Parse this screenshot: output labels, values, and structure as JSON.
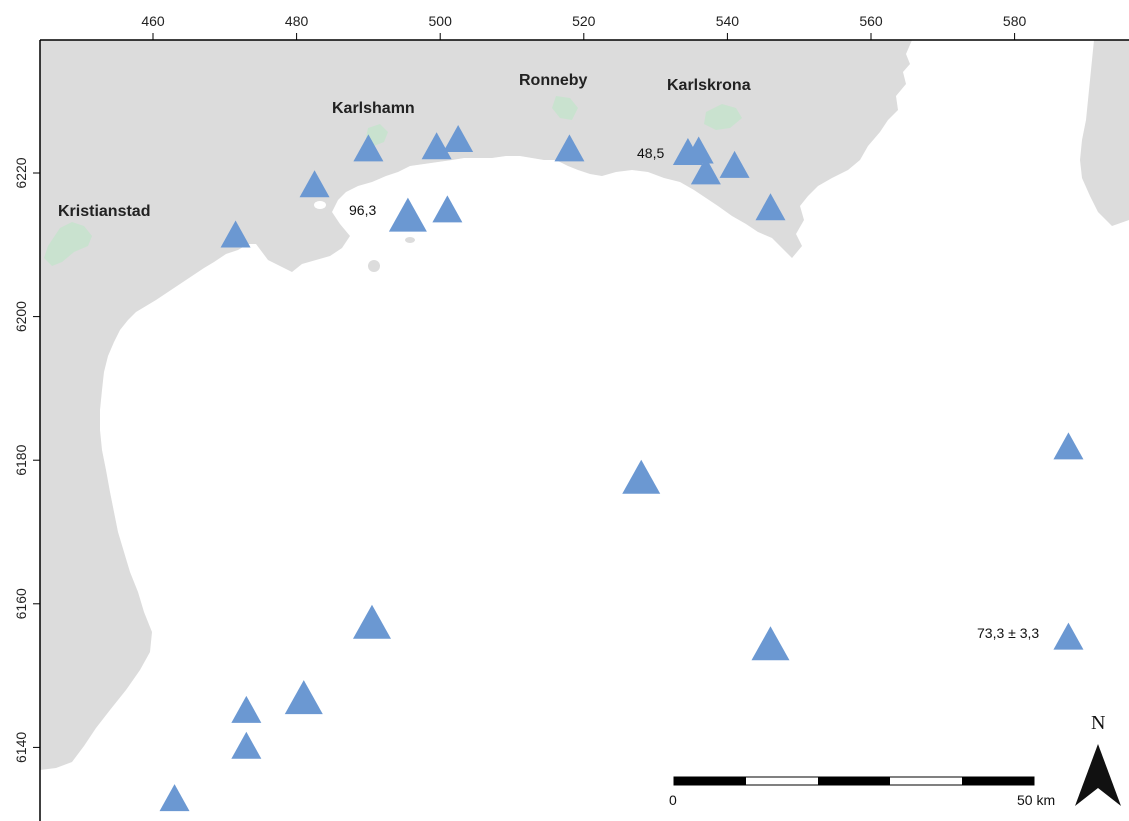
{
  "map": {
    "x_ticks": [
      "460",
      "480",
      "500",
      "520",
      "540",
      "560",
      "580"
    ],
    "y_ticks": [
      "6220",
      "6200",
      "6180",
      "6160",
      "6140"
    ],
    "colors": {
      "land": "#dcdcdc",
      "sea": "#ffffff",
      "urban": "#c9e2cf",
      "station": "#6b98d2",
      "frame": "#000000"
    },
    "towns": [
      {
        "id": "kristianstad",
        "name": "Kristianstad"
      },
      {
        "id": "karlshamn",
        "name": "Karlshamn"
      },
      {
        "id": "ronneby",
        "name": "Ronneby"
      },
      {
        "id": "karlskrona",
        "name": "Karlskrona"
      }
    ],
    "value_labels": [
      {
        "id": "v1",
        "text": "96,3"
      },
      {
        "id": "v2",
        "text": "48,5"
      },
      {
        "id": "v3",
        "text": "73,3 ± 3,3"
      }
    ],
    "stations": [
      {
        "x": 490,
        "y": 6223.5,
        "size": "small"
      },
      {
        "x": 499.5,
        "y": 6223.8,
        "size": "small"
      },
      {
        "x": 502.5,
        "y": 6224.8,
        "size": "small"
      },
      {
        "x": 482.5,
        "y": 6218.5,
        "size": "small"
      },
      {
        "x": 495.5,
        "y": 6214.2,
        "size": "large"
      },
      {
        "x": 501,
        "y": 6215,
        "size": "small"
      },
      {
        "x": 471.5,
        "y": 6211.5,
        "size": "small"
      },
      {
        "x": 518,
        "y": 6223.5,
        "size": "small"
      },
      {
        "x": 534.5,
        "y": 6223,
        "size": "small"
      },
      {
        "x": 536,
        "y": 6223.2,
        "size": "small"
      },
      {
        "x": 537,
        "y": 6220.3,
        "size": "small"
      },
      {
        "x": 541,
        "y": 6221.2,
        "size": "small"
      },
      {
        "x": 546,
        "y": 6215.3,
        "size": "small"
      },
      {
        "x": 528,
        "y": 6177.7,
        "size": "large"
      },
      {
        "x": 587.5,
        "y": 6182,
        "size": "small"
      },
      {
        "x": 490.5,
        "y": 6157.5,
        "size": "large"
      },
      {
        "x": 546,
        "y": 6154.5,
        "size": "large"
      },
      {
        "x": 587.5,
        "y": 6155.5,
        "size": "small"
      },
      {
        "x": 481,
        "y": 6147,
        "size": "large"
      },
      {
        "x": 473,
        "y": 6145.3,
        "size": "small"
      },
      {
        "x": 473,
        "y": 6140.3,
        "size": "small"
      },
      {
        "x": 463,
        "y": 6133,
        "size": "small"
      }
    ],
    "scalebar": {
      "start_label": "0",
      "end_label": "50 km"
    },
    "north_label": "N"
  }
}
